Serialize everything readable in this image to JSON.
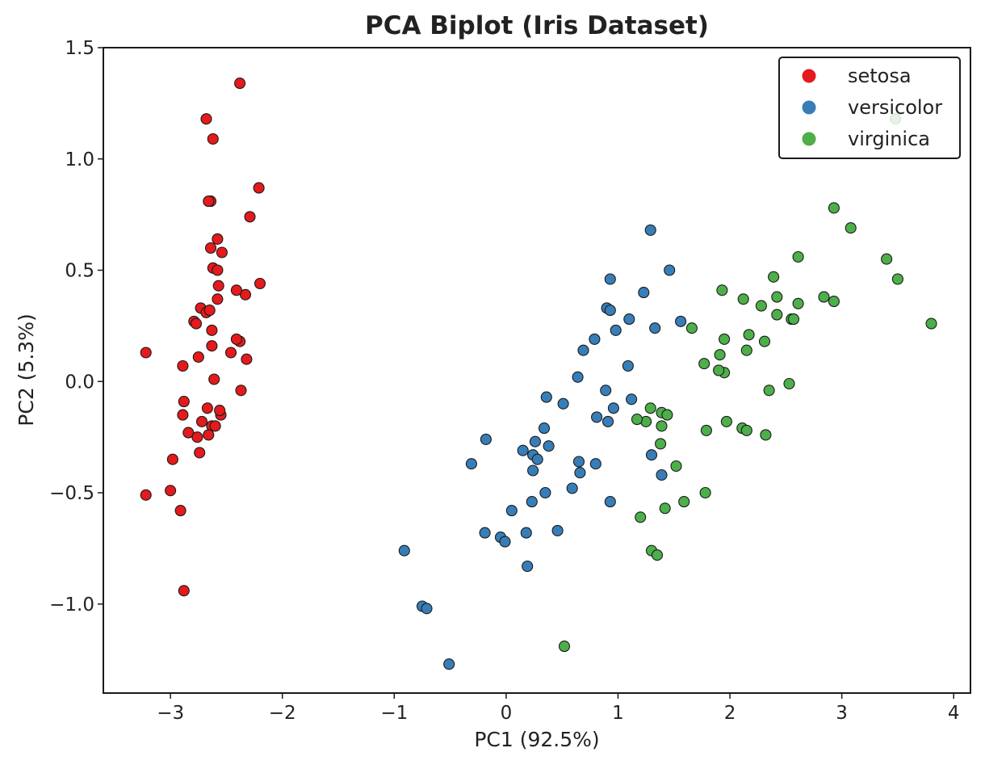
{
  "chart_data": {
    "type": "scatter",
    "title": "PCA Biplot (Iris Dataset)",
    "xlabel": "PC1 (92.5%)",
    "ylabel": "PC2 (5.3%)",
    "xlim": [
      -3.6,
      4.15
    ],
    "ylim": [
      -1.4,
      1.5
    ],
    "x_ticks": [
      -3,
      -2,
      -1,
      0,
      1,
      2,
      3,
      4
    ],
    "x_tick_labels": [
      "−3",
      "−2",
      "−1",
      "0",
      "1",
      "2",
      "3",
      "4"
    ],
    "y_ticks": [
      -1.0,
      -0.5,
      0.0,
      0.5,
      1.0,
      1.5
    ],
    "y_tick_labels": [
      "−1.0",
      "−0.5",
      "0.0",
      "0.5",
      "1.0",
      "1.5"
    ],
    "grid": false,
    "legend_position": "top-right",
    "series": [
      {
        "name": "setosa",
        "color": "#e41a1c",
        "x": [
          -2.38,
          -2.68,
          -2.62,
          -2.64,
          -2.66,
          -2.21,
          -2.29,
          -2.64,
          -2.58,
          -2.54,
          -2.2,
          -2.33,
          -2.62,
          -2.58,
          -2.41,
          -2.57,
          -2.73,
          -2.68,
          -2.79,
          -2.38,
          -2.58,
          -2.41,
          -2.63,
          -2.46,
          -2.32,
          -2.61,
          -2.75,
          -2.89,
          -2.63,
          -2.37,
          -2.88,
          -2.55,
          -2.72,
          -2.84,
          -2.89,
          -2.74,
          -2.63,
          -2.76,
          -3.22,
          -2.6,
          -2.67,
          -2.98,
          -3.22,
          -3.0,
          -2.91,
          -2.88,
          -2.77,
          -2.56,
          -2.66,
          -2.65
        ],
        "y": [
          1.34,
          1.18,
          1.09,
          0.81,
          0.81,
          0.87,
          0.74,
          0.6,
          0.64,
          0.58,
          0.44,
          0.39,
          0.51,
          0.5,
          0.41,
          0.43,
          0.33,
          0.31,
          0.27,
          0.18,
          0.37,
          0.19,
          0.16,
          0.13,
          0.1,
          0.01,
          0.11,
          0.07,
          0.23,
          -0.04,
          -0.09,
          -0.15,
          -0.18,
          -0.23,
          -0.15,
          -0.32,
          -0.2,
          -0.25,
          0.13,
          -0.2,
          -0.12,
          -0.35,
          -0.51,
          -0.49,
          -0.58,
          -0.94,
          0.26,
          -0.13,
          -0.24,
          0.32
        ]
      },
      {
        "name": "versicolor",
        "color": "#377eb8",
        "x": [
          1.29,
          1.46,
          0.93,
          1.23,
          0.9,
          0.93,
          1.1,
          0.98,
          1.33,
          1.56,
          0.79,
          0.69,
          1.09,
          0.64,
          0.36,
          0.51,
          0.89,
          0.96,
          0.81,
          0.91,
          1.12,
          1.3,
          1.39,
          0.8,
          -0.18,
          0.26,
          0.34,
          0.15,
          0.24,
          0.28,
          0.38,
          0.65,
          0.66,
          0.35,
          0.59,
          0.23,
          -0.31,
          0.93,
          0.05,
          -0.19,
          0.18,
          -0.05,
          -0.01,
          0.46,
          0.19,
          -0.91,
          -0.75,
          -0.71,
          -0.51,
          0.24
        ],
        "y": [
          0.68,
          0.5,
          0.46,
          0.4,
          0.33,
          0.32,
          0.28,
          0.23,
          0.24,
          0.27,
          0.19,
          0.14,
          0.07,
          0.02,
          -0.07,
          -0.1,
          -0.04,
          -0.12,
          -0.16,
          -0.18,
          -0.08,
          -0.33,
          -0.42,
          -0.37,
          -0.26,
          -0.27,
          -0.21,
          -0.31,
          -0.33,
          -0.35,
          -0.29,
          -0.36,
          -0.41,
          -0.5,
          -0.48,
          -0.54,
          -0.37,
          -0.54,
          -0.58,
          -0.68,
          -0.68,
          -0.7,
          -0.72,
          -0.67,
          -0.83,
          -0.76,
          -1.01,
          -1.02,
          -1.27,
          -0.4
        ]
      },
      {
        "name": "virginica",
        "color": "#4daf4a",
        "x": [
          3.48,
          2.93,
          3.08,
          2.61,
          3.4,
          3.5,
          3.8,
          1.93,
          2.12,
          2.28,
          2.39,
          2.42,
          2.42,
          2.55,
          2.84,
          2.93,
          2.61,
          1.66,
          1.95,
          2.17,
          1.77,
          1.91,
          2.31,
          2.15,
          1.9,
          1.95,
          2.53,
          2.35,
          1.39,
          1.29,
          1.25,
          1.17,
          1.44,
          1.39,
          1.97,
          1.79,
          2.11,
          2.15,
          2.32,
          1.52,
          1.38,
          1.59,
          1.78,
          1.42,
          1.2,
          1.3,
          1.35,
          0.52,
          1.9,
          2.57
        ],
        "y": [
          1.18,
          0.78,
          0.69,
          0.56,
          0.55,
          0.46,
          0.26,
          0.41,
          0.37,
          0.34,
          0.47,
          0.38,
          0.3,
          0.28,
          0.38,
          0.36,
          0.35,
          0.24,
          0.19,
          0.21,
          0.08,
          0.12,
          0.18,
          0.14,
          0.05,
          0.04,
          -0.01,
          -0.04,
          -0.14,
          -0.12,
          -0.18,
          -0.17,
          -0.15,
          -0.2,
          -0.18,
          -0.22,
          -0.21,
          -0.22,
          -0.24,
          -0.38,
          -0.28,
          -0.54,
          -0.5,
          -0.57,
          -0.61,
          -0.76,
          -0.78,
          -1.19,
          0.05,
          0.28
        ]
      }
    ]
  }
}
